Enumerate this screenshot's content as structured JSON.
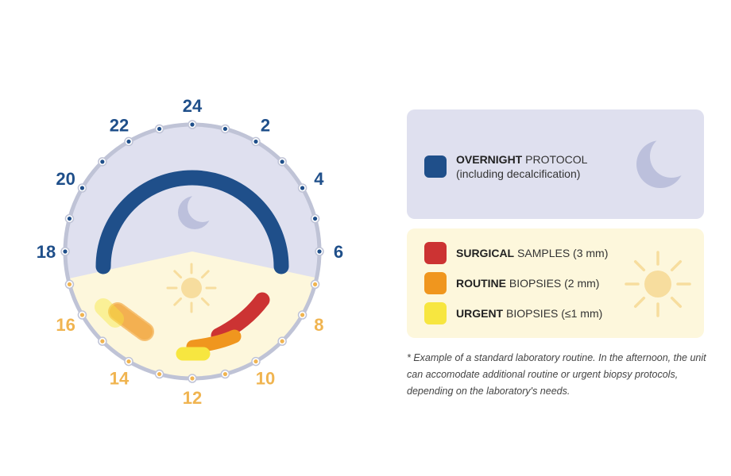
{
  "colors": {
    "night_bg": "#dfe0ef",
    "day_bg": "#fdf7dc",
    "dial_ring": "#bfc3d6",
    "night_label": "#1f4f8a",
    "day_label": "#f0b450",
    "overnight": "#1f4f8a",
    "surgical": "#cc3333",
    "routine": "#f0961e",
    "urgent": "#f7e640",
    "moon": "#bcc0dc",
    "sun": "#f7dd9e"
  },
  "clock": {
    "hour_labels": [
      {
        "text": "24",
        "hour": 0,
        "period": "night"
      },
      {
        "text": "2",
        "hour": 2,
        "period": "night"
      },
      {
        "text": "4",
        "hour": 4,
        "period": "night"
      },
      {
        "text": "6",
        "hour": 6,
        "period": "night"
      },
      {
        "text": "8",
        "hour": 8,
        "period": "day"
      },
      {
        "text": "10",
        "hour": 10,
        "period": "day"
      },
      {
        "text": "12",
        "hour": 12,
        "period": "day"
      },
      {
        "text": "14",
        "hour": 14,
        "period": "day"
      },
      {
        "text": "16",
        "hour": 16,
        "period": "day"
      },
      {
        "text": "18",
        "hour": 18,
        "period": "night"
      },
      {
        "text": "20",
        "hour": 20,
        "period": "night"
      },
      {
        "text": "22",
        "hour": 22,
        "period": "night"
      }
    ],
    "moon_icon": "crescent-moon-icon",
    "sun_icon": "sun-icon",
    "segments": [
      {
        "name": "overnight-protocol",
        "type": "overnight"
      },
      {
        "name": "surgical-samples",
        "type": "surgical"
      },
      {
        "name": "routine-biopsies",
        "type": "routine"
      },
      {
        "name": "urgent-biopsies",
        "type": "urgent"
      },
      {
        "name": "routine-biopsies-optional",
        "type": "routine",
        "optional": true
      },
      {
        "name": "urgent-biopsies-optional",
        "type": "urgent",
        "optional": true
      }
    ]
  },
  "legend": {
    "overnight": {
      "bold": "OVERNIGHT",
      "rest": " PROTOCOL",
      "line2": "(including decalcification)"
    },
    "surgical": {
      "bold": "SURGICAL",
      "rest": " SAMPLES (3 mm)"
    },
    "routine": {
      "bold": "ROUTINE",
      "rest": " BIOPSIES (2 mm)"
    },
    "urgent": {
      "bold": "URGENT",
      "rest": " BIOPSIES (≤1 mm)"
    }
  },
  "footnote": "* Example of a standard laboratory routine. In the afternoon, the unit can accomodate additional routine or urgent biopsy protocols, depending on the laboratory's needs."
}
